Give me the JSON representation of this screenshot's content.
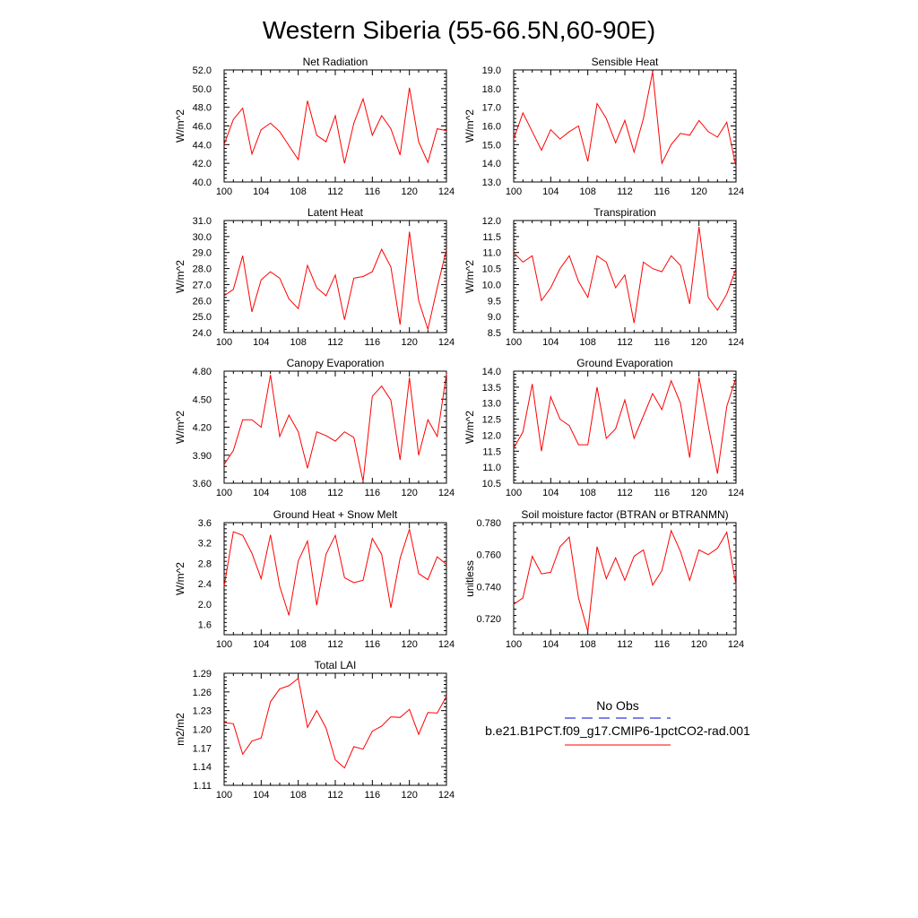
{
  "figure": {
    "title": "Western Siberia (55-66.5N,60-90E)",
    "line_color": "#ff0000",
    "obs_color": "#0000cc"
  },
  "legend": {
    "obs_label": "No Obs",
    "model_label": "b.e21.B1PCT.f09_g17.CMIP6-1pctCO2-rad.001"
  },
  "chart_data": [
    {
      "type": "line",
      "title": "Net Radiation",
      "ylabel": "W/m^2",
      "xlim": [
        100,
        124
      ],
      "ylim": [
        40.0,
        52.0
      ],
      "xticks": [
        100,
        104,
        108,
        112,
        116,
        120,
        124
      ],
      "yticks": [
        "40.0",
        "42.0",
        "44.0",
        "46.0",
        "48.0",
        "50.0",
        "52.0"
      ],
      "series": [
        {
          "x": [
            100,
            101,
            102,
            103,
            104,
            105,
            106,
            107,
            108,
            109,
            110,
            111,
            112,
            113,
            114,
            115,
            116,
            117,
            118,
            119,
            120,
            121,
            122,
            123,
            124
          ],
          "values": [
            44.0,
            46.7,
            47.9,
            43.0,
            45.6,
            46.3,
            45.4,
            43.9,
            42.4,
            48.7,
            45.0,
            44.3,
            47.1,
            42.0,
            46.3,
            48.9,
            45.0,
            47.1,
            45.7,
            42.9,
            50.1,
            44.3,
            42.1,
            45.7,
            45.5
          ]
        }
      ]
    },
    {
      "type": "line",
      "title": "Sensible Heat",
      "ylabel": "W/m^2",
      "xlim": [
        100,
        124
      ],
      "ylim": [
        13.0,
        19.0
      ],
      "xticks": [
        100,
        104,
        108,
        112,
        116,
        120,
        124
      ],
      "yticks": [
        "13.0",
        "14.0",
        "15.0",
        "16.0",
        "17.0",
        "18.0",
        "19.0"
      ],
      "series": [
        {
          "x": [
            100,
            101,
            102,
            103,
            104,
            105,
            106,
            107,
            108,
            109,
            110,
            111,
            112,
            113,
            114,
            115,
            116,
            117,
            118,
            119,
            120,
            121,
            122,
            123,
            124
          ],
          "values": [
            15.3,
            16.7,
            15.7,
            14.7,
            15.8,
            15.3,
            15.7,
            16.0,
            14.1,
            17.2,
            16.4,
            15.1,
            16.3,
            14.6,
            16.4,
            18.9,
            14.0,
            15.0,
            15.6,
            15.5,
            16.3,
            15.7,
            15.4,
            16.2,
            13.8
          ]
        }
      ]
    },
    {
      "type": "line",
      "title": "Latent Heat",
      "ylabel": "W/m^2",
      "xlim": [
        100,
        124
      ],
      "ylim": [
        24.0,
        31.0
      ],
      "xticks": [
        100,
        104,
        108,
        112,
        116,
        120,
        124
      ],
      "yticks": [
        "24.0",
        "25.0",
        "26.0",
        "27.0",
        "28.0",
        "29.0",
        "30.0",
        "31.0"
      ],
      "series": [
        {
          "x": [
            100,
            101,
            102,
            103,
            104,
            105,
            106,
            107,
            108,
            109,
            110,
            111,
            112,
            113,
            114,
            115,
            116,
            117,
            118,
            119,
            120,
            121,
            122,
            123,
            124
          ],
          "values": [
            26.3,
            26.7,
            28.8,
            25.3,
            27.3,
            27.8,
            27.4,
            26.1,
            25.5,
            28.2,
            26.8,
            26.3,
            27.6,
            24.8,
            27.4,
            27.5,
            27.8,
            29.2,
            28.1,
            24.5,
            30.3,
            26.0,
            24.2,
            26.8,
            29.2
          ]
        }
      ]
    },
    {
      "type": "line",
      "title": "Transpiration",
      "ylabel": "W/m^2",
      "xlim": [
        100,
        124
      ],
      "ylim": [
        8.5,
        12.0
      ],
      "xticks": [
        100,
        104,
        108,
        112,
        116,
        120,
        124
      ],
      "yticks": [
        "8.5",
        "9.0",
        "9.5",
        "10.0",
        "10.5",
        "11.0",
        "11.5",
        "12.0"
      ],
      "series": [
        {
          "x": [
            100,
            101,
            102,
            103,
            104,
            105,
            106,
            107,
            108,
            109,
            110,
            111,
            112,
            113,
            114,
            115,
            116,
            117,
            118,
            119,
            120,
            121,
            122,
            123,
            124
          ],
          "values": [
            11.0,
            10.7,
            10.9,
            9.5,
            9.9,
            10.5,
            10.9,
            10.1,
            9.6,
            10.9,
            10.7,
            9.9,
            10.3,
            8.8,
            10.7,
            10.5,
            10.4,
            10.9,
            10.6,
            9.4,
            11.8,
            9.6,
            9.2,
            9.7,
            10.5
          ]
        }
      ]
    },
    {
      "type": "line",
      "title": "Canopy Evaporation",
      "ylabel": "W/m^2",
      "xlim": [
        100,
        124
      ],
      "ylim": [
        3.6,
        4.8
      ],
      "xticks": [
        100,
        104,
        108,
        112,
        116,
        120,
        124
      ],
      "yticks": [
        "3.60",
        "3.90",
        "4.20",
        "4.50",
        "4.80"
      ],
      "series": [
        {
          "x": [
            100,
            101,
            102,
            103,
            104,
            105,
            106,
            107,
            108,
            109,
            110,
            111,
            112,
            113,
            114,
            115,
            116,
            117,
            118,
            119,
            120,
            121,
            122,
            123,
            124
          ],
          "values": [
            3.8,
            3.95,
            4.28,
            4.28,
            4.2,
            4.76,
            4.1,
            4.33,
            4.15,
            3.76,
            4.15,
            4.11,
            4.05,
            4.15,
            4.09,
            3.62,
            4.53,
            4.64,
            4.49,
            3.85,
            4.73,
            3.9,
            4.28,
            4.1,
            4.77
          ]
        }
      ]
    },
    {
      "type": "line",
      "title": "Ground Evaporation",
      "ylabel": "W/m^2",
      "xlim": [
        100,
        124
      ],
      "ylim": [
        10.5,
        14.0
      ],
      "xticks": [
        100,
        104,
        108,
        112,
        116,
        120,
        124
      ],
      "yticks": [
        "10.5",
        "11.0",
        "11.5",
        "12.0",
        "12.5",
        "13.0",
        "13.5",
        "14.0"
      ],
      "series": [
        {
          "x": [
            100,
            101,
            102,
            103,
            104,
            105,
            106,
            107,
            108,
            109,
            110,
            111,
            112,
            113,
            114,
            115,
            116,
            117,
            118,
            119,
            120,
            121,
            122,
            123,
            124
          ],
          "values": [
            11.6,
            12.1,
            13.6,
            11.5,
            13.2,
            12.5,
            12.3,
            11.7,
            11.7,
            13.5,
            11.9,
            12.2,
            13.1,
            11.9,
            12.6,
            13.3,
            12.8,
            13.7,
            13.0,
            11.3,
            13.8,
            12.3,
            10.8,
            12.9,
            13.8
          ]
        }
      ]
    },
    {
      "type": "line",
      "title": "Ground Heat + Snow Melt",
      "ylabel": "W/m^2",
      "xlim": [
        100,
        124
      ],
      "ylim": [
        1.4,
        3.6
      ],
      "xticks": [
        100,
        104,
        108,
        112,
        116,
        120,
        124
      ],
      "yticks": [
        "1.6",
        "2.0",
        "2.4",
        "2.8",
        "3.2",
        "3.6"
      ],
      "series": [
        {
          "x": [
            100,
            101,
            102,
            103,
            104,
            105,
            106,
            107,
            108,
            109,
            110,
            111,
            112,
            113,
            114,
            115,
            116,
            117,
            118,
            119,
            120,
            121,
            122,
            123,
            124
          ],
          "values": [
            2.35,
            3.42,
            3.35,
            3.0,
            2.5,
            3.36,
            2.35,
            1.78,
            2.85,
            3.24,
            1.98,
            2.98,
            3.35,
            2.52,
            2.42,
            2.47,
            3.29,
            2.98,
            1.93,
            2.9,
            3.47,
            2.6,
            2.48,
            2.93,
            2.78
          ]
        }
      ]
    },
    {
      "type": "line",
      "title": "Soil moisture factor (BTRAN or BTRANMN)",
      "ylabel": "unitless",
      "xlim": [
        100,
        124
      ],
      "ylim": [
        0.71,
        0.78
      ],
      "xticks": [
        100,
        104,
        108,
        112,
        116,
        120,
        124
      ],
      "yticks": [
        "0.720",
        "0.740",
        "0.760",
        "0.780"
      ],
      "series": [
        {
          "x": [
            100,
            101,
            102,
            103,
            104,
            105,
            106,
            107,
            108,
            109,
            110,
            111,
            112,
            113,
            114,
            115,
            116,
            117,
            118,
            119,
            120,
            121,
            122,
            123,
            124
          ],
          "values": [
            0.729,
            0.733,
            0.759,
            0.748,
            0.749,
            0.765,
            0.771,
            0.733,
            0.712,
            0.765,
            0.745,
            0.758,
            0.744,
            0.759,
            0.763,
            0.741,
            0.75,
            0.775,
            0.762,
            0.744,
            0.763,
            0.76,
            0.764,
            0.774,
            0.741
          ]
        }
      ]
    },
    {
      "type": "line",
      "title": "Total LAI",
      "ylabel": "m2/m2",
      "xlim": [
        100,
        124
      ],
      "ylim": [
        1.11,
        1.29
      ],
      "xticks": [
        100,
        104,
        108,
        112,
        116,
        120,
        124
      ],
      "yticks": [
        "1.11",
        "1.14",
        "1.17",
        "1.20",
        "1.23",
        "1.26",
        "1.29"
      ],
      "series": [
        {
          "x": [
            100,
            101,
            102,
            103,
            104,
            105,
            106,
            107,
            108,
            109,
            110,
            111,
            112,
            113,
            114,
            115,
            116,
            117,
            118,
            119,
            120,
            121,
            122,
            123,
            124
          ],
          "values": [
            1.211,
            1.209,
            1.16,
            1.181,
            1.186,
            1.244,
            1.265,
            1.27,
            1.282,
            1.203,
            1.23,
            1.202,
            1.151,
            1.138,
            1.172,
            1.168,
            1.197,
            1.205,
            1.22,
            1.219,
            1.232,
            1.192,
            1.227,
            1.226,
            1.253
          ]
        }
      ]
    }
  ]
}
